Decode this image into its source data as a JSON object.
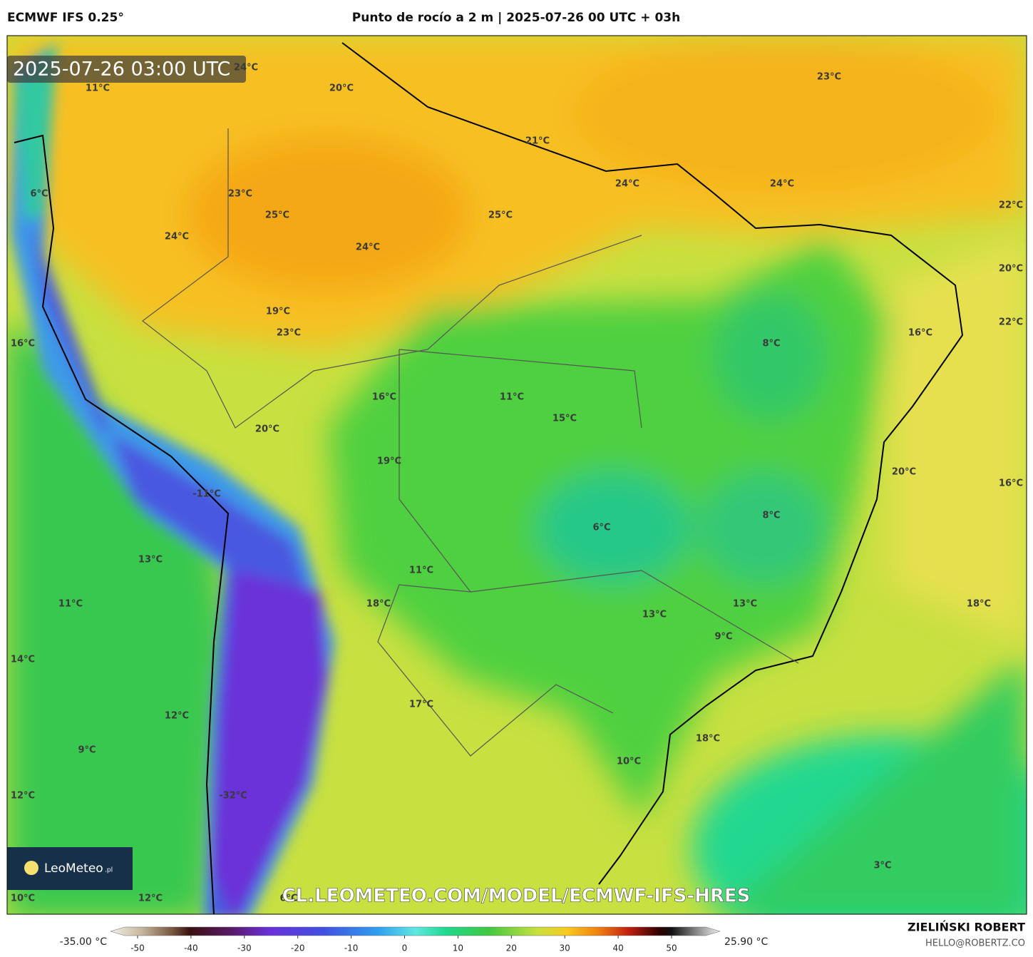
{
  "header": {
    "model": "ECMWF IFS 0.25°",
    "title": "Punto de rocío a 2 m | 2025-07-26 00 UTC + 03h"
  },
  "map": {
    "timestamp": "2025-07-26 03:00 UTC",
    "watermark": "CL.LEOMETEO.COM/MODEL/ECMWF-IFS-HRES",
    "logo": {
      "name": "LeoMeteo",
      "suffix": ".pl"
    },
    "labels": [
      "24°C",
      "11°C",
      "20°C",
      "23°C",
      "21°C",
      "24°C",
      "24°C",
      "6°C",
      "23°C",
      "25°C",
      "25°C",
      "22°C",
      "24°C",
      "24°C",
      "20°C",
      "19°C",
      "23°C",
      "8°C",
      "16°C",
      "22°C",
      "16°C",
      "16°C",
      "11°C",
      "15°C",
      "20°C",
      "19°C",
      "20°C",
      "16°C",
      "-11°C",
      "8°C",
      "6°C",
      "13°C",
      "11°C",
      "11°C",
      "18°C",
      "13°C",
      "13°C",
      "18°C",
      "9°C",
      "14°C",
      "17°C",
      "12°C",
      "18°C",
      "9°C",
      "10°C",
      "12°C",
      "-32°C",
      "3°C",
      "10°C",
      "12°C",
      "6°C"
    ]
  },
  "colorbar": {
    "min_label": "-35.00 °C",
    "max_label": "25.90 °C",
    "ticks": [
      -50,
      -40,
      -30,
      -20,
      -10,
      0,
      10,
      20,
      30,
      40,
      50
    ]
  },
  "footer": {
    "author": "ZIELIŃSKI ROBERT",
    "email": "HELLO@ROBERTZ.CO"
  }
}
